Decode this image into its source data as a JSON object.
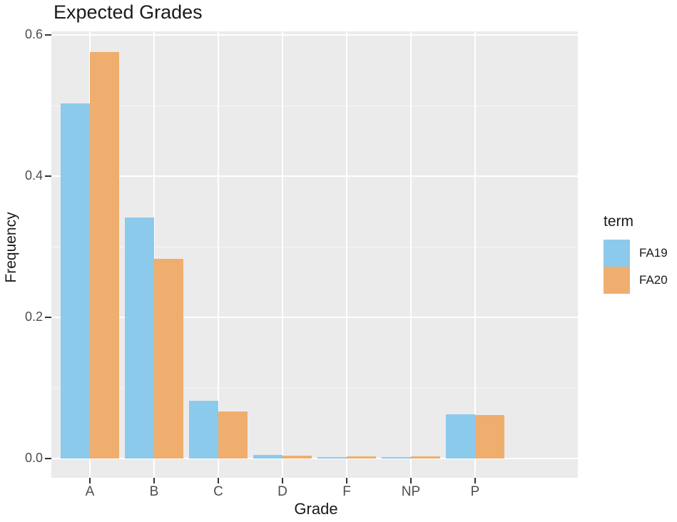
{
  "title": "Expected Grades",
  "chart_data": {
    "type": "bar",
    "subtype": "grouped-dodged",
    "title": "Expected Grades",
    "xlabel": "Grade",
    "ylabel": "Frequency",
    "categories": [
      "A",
      "B",
      "C",
      "D",
      "F",
      "NP",
      "P"
    ],
    "series": [
      {
        "name": "FA19",
        "color": "#8CCAEC",
        "values": [
          0.503,
          0.341,
          0.082,
          0.005,
          0.002,
          0.002,
          0.063
        ]
      },
      {
        "name": "FA20",
        "color": "#EFAE6E",
        "values": [
          0.576,
          0.283,
          0.067,
          0.004,
          0.003,
          0.003,
          0.062
        ]
      }
    ],
    "ylim": [
      0,
      0.6
    ],
    "yticks": [
      0.0,
      0.2,
      0.4,
      0.6
    ],
    "grid": true,
    "legend_title": "term",
    "legend_position": "right",
    "style": "ggplot-grey-panel"
  },
  "colors": {
    "background": "#FFFFFF",
    "panel_background": "#EBEBEB",
    "grid_major": "#FFFFFF",
    "grid_minor": "#F5F5F5",
    "tick_label": "#4D4D4D",
    "tick_mark": "#333333",
    "text": "#1A1A1A"
  }
}
